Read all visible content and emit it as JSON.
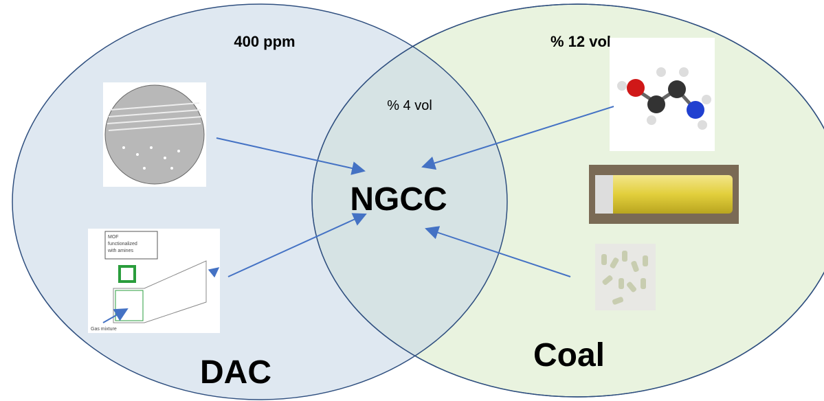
{
  "left_set": {
    "label": "DAC",
    "concentration": "400 ppm"
  },
  "right_set": {
    "label": "Coal",
    "concentration": "% 12 vol"
  },
  "overlap": {
    "label": "NGCC",
    "concentration": "% 4 vol"
  },
  "mof_figure": {
    "callout": [
      "MOF",
      "functionalized",
      "with amines"
    ],
    "inlet": "Gas mixture"
  }
}
